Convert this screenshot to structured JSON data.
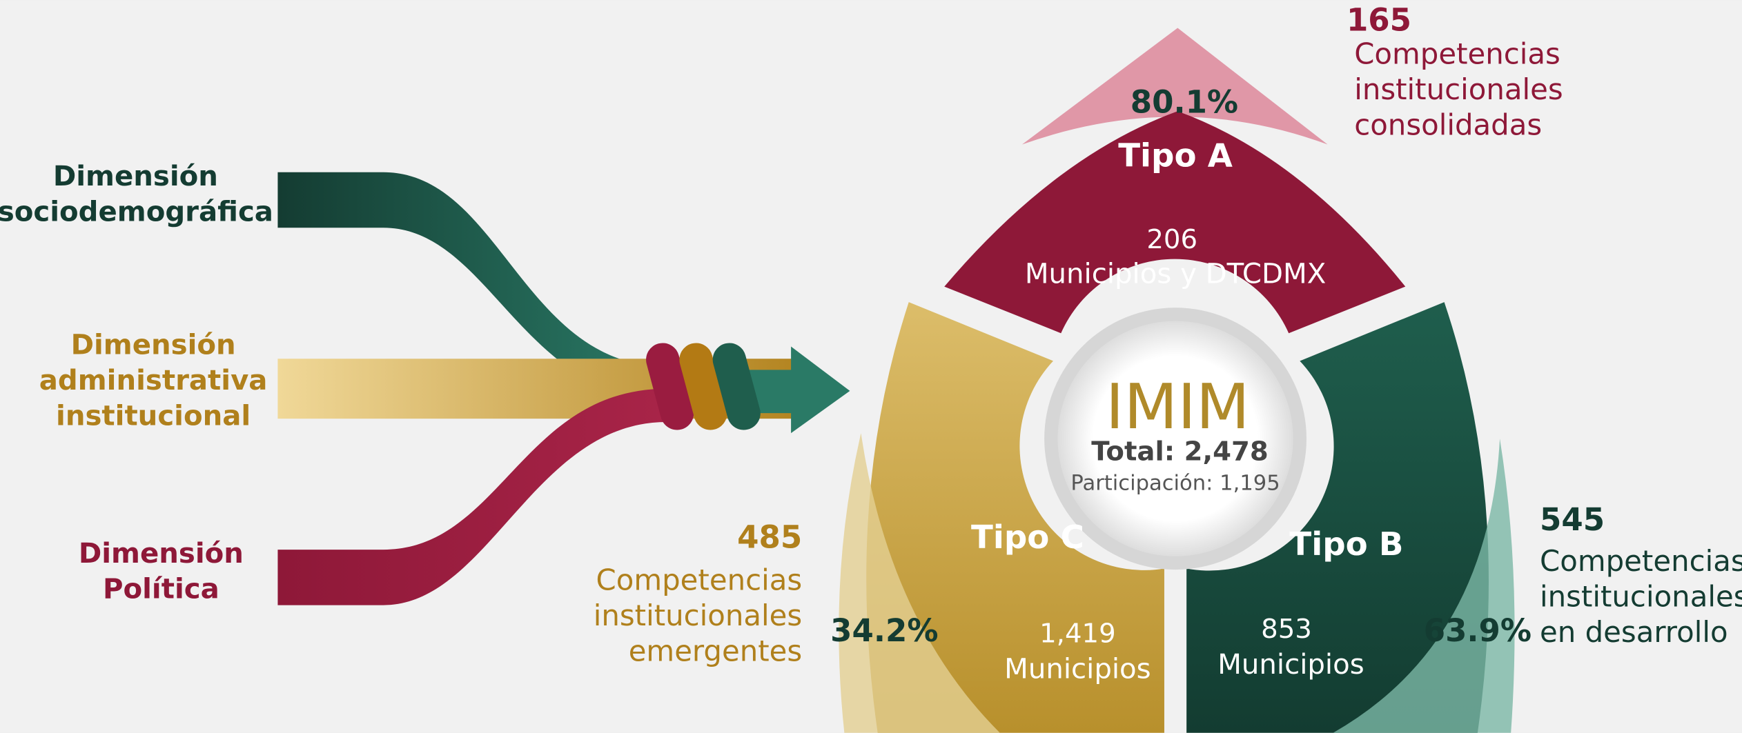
{
  "dimensions": [
    {
      "lines": [
        "Dimensión",
        "sociodemográfica"
      ]
    },
    {
      "lines": [
        "Dimensión",
        "administrativa",
        "institucional"
      ]
    },
    {
      "lines": [
        "Dimensión",
        "Política"
      ]
    }
  ],
  "center": {
    "title": "IMIM",
    "total": "Total: 2,478",
    "participation": "Participación: 1,195"
  },
  "types": [
    {
      "name": "Tipo A",
      "count": "206",
      "unit": "Municipios y DTCDMX",
      "percent": "80.1%",
      "highlight": "165",
      "description": [
        "Competencias",
        "institucionales",
        "consolidadas"
      ]
    },
    {
      "name": "Tipo B",
      "count": "853",
      "unit": "Municipios",
      "percent": "63.9%",
      "highlight": "545",
      "description": [
        "Competencias",
        "institucionales",
        "en desarrollo"
      ]
    },
    {
      "name": "Tipo C",
      "count": "1,419",
      "unit": "Municipios",
      "percent": "34.2%",
      "highlight": "485",
      "description": [
        "Competencias",
        "institucionales",
        "emergentes"
      ]
    }
  ]
}
